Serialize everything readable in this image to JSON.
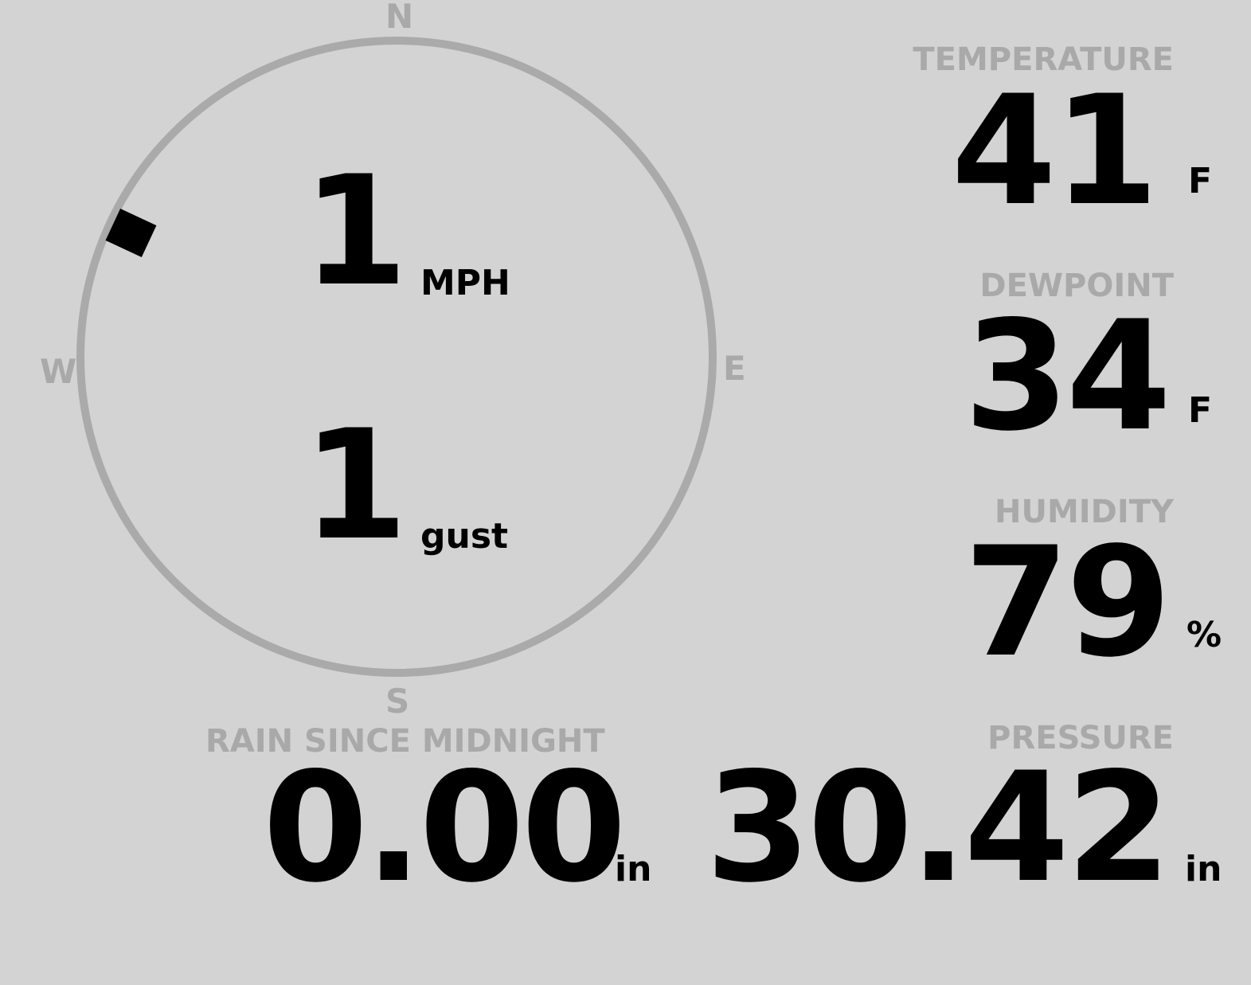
{
  "wind": {
    "speed": "1",
    "speed_unit": "MPH",
    "gust": "1",
    "gust_label": "gust",
    "direction_degrees": 295,
    "compass": {
      "north": "N",
      "south": "S",
      "east": "E",
      "west": "W"
    }
  },
  "temperature": {
    "label": "TEMPERATURE",
    "value": "41",
    "unit": "F"
  },
  "dewpoint": {
    "label": "DEWPOINT",
    "value": "34",
    "unit": "F"
  },
  "humidity": {
    "label": "HUMIDITY",
    "value": "79",
    "unit": "%"
  },
  "rain": {
    "label": "RAIN SINCE MIDNIGHT",
    "value": "0.00",
    "unit": "in"
  },
  "pressure": {
    "label": "PRESSURE",
    "value": "30.42",
    "unit": "in"
  },
  "colors": {
    "background": "#d3d3d3",
    "label": "#a9a9a9",
    "value": "#000000",
    "dial": "#aaaaaa"
  }
}
